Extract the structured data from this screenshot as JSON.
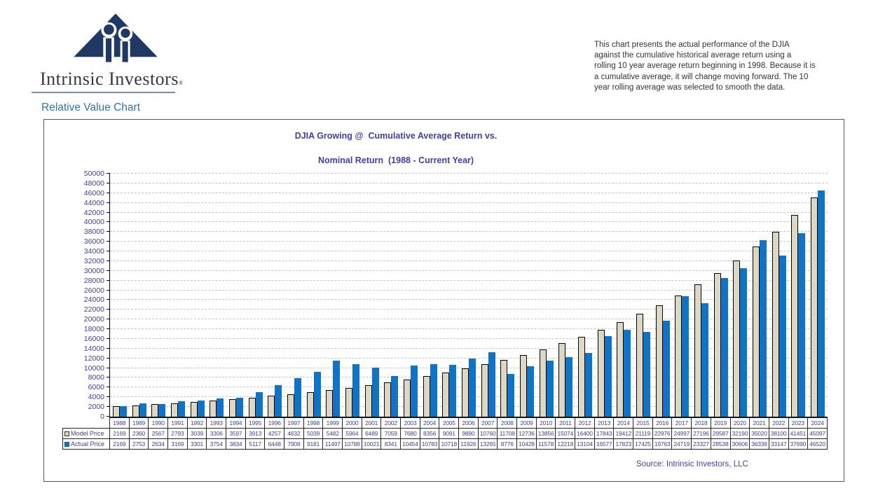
{
  "logo": {
    "brand": "Intrinsic Investors",
    "registered": "®",
    "navy": "#1F3864"
  },
  "page_heading": "Relative Value Chart",
  "description_lines": [
    "This chart presents the actual performance of the DJIA",
    "against the cumulative historical average return using a",
    "rolling 10 year average return beginning in 1998. Because it is",
    "a cumulative average, it will change moving forward. The 10",
    "year rolling average was selected to smooth the data."
  ],
  "chart": {
    "title_line1": "DJIA Growing @  Cumulative Average Return vs.",
    "title_line2": "Nominal Return  (1988 - Current Year)",
    "source": "Source: Intrinsic Investors, LLC",
    "colors": {
      "title_text": "#3F3FA8",
      "axis_text": "#4040A0",
      "heading_blue": "#2E74B5",
      "model_bar": "#DDD8C3",
      "model_bar_border": "#000000",
      "actual_bar": "#1173C5",
      "gridline": "#C5C5C5",
      "box_border": "#595959"
    }
  },
  "chart_data": {
    "type": "bar",
    "title": "DJIA Growing @  Cumulative Average Return vs. Nominal Return  (1988 - Current Year)",
    "xlabel": "",
    "ylabel": "",
    "ylim": [
      0,
      50000
    ],
    "ytick_step": 2000,
    "grid": "dashed-horizontal",
    "legend_position": "table-left",
    "categories": [
      "1988",
      "1989",
      "1990",
      "1991",
      "1992",
      "1993",
      "1994",
      "1995",
      "1996",
      "1997",
      "1998",
      "1999",
      "2000",
      "2001",
      "2002",
      "2003",
      "2004",
      "2005",
      "2006",
      "2007",
      "2008",
      "2009",
      "2010",
      "2011",
      "2012",
      "2013",
      "2014",
      "2015",
      "2016",
      "2017",
      "2018",
      "2019",
      "2020",
      "2021",
      "2022",
      "2023",
      "2024"
    ],
    "series": [
      {
        "name": "Model Price",
        "color": "#DDD8C3",
        "values": [
          2169,
          2360,
          2567,
          2793,
          3039,
          3306,
          3597,
          3913,
          4257,
          4632,
          5039,
          5482,
          5964,
          6489,
          7059,
          7680,
          8356,
          9091,
          9890,
          10760,
          11708,
          12736,
          13856,
          15074,
          16400,
          17843,
          19412,
          21119,
          22976,
          24997,
          27196,
          29587,
          32190,
          35020,
          38100,
          41451,
          45097
        ]
      },
      {
        "name": "Actual Price",
        "color": "#1173C5",
        "values": [
          2169,
          2753,
          2634,
          3169,
          3301,
          3754,
          3834,
          5117,
          6448,
          7908,
          9181,
          11497,
          10788,
          10021,
          8341,
          10454,
          10783,
          10718,
          11926,
          13265,
          8776,
          10428,
          11578,
          12218,
          13104,
          16577,
          17823,
          17425,
          19763,
          24719,
          23327,
          28538,
          30606,
          36338,
          33147,
          37690,
          46520
        ]
      }
    ]
  }
}
